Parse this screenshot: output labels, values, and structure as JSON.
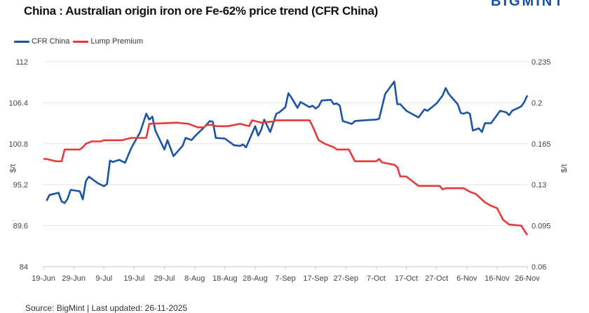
{
  "chart_data": {
    "type": "line",
    "title": "China : Australian origin iron ore Fe-62% price trend (CFR China)",
    "logo": "BIGMINT",
    "source": "Source: BigMint | Last updated: 26-11-2025",
    "y_left": {
      "label": "$/t",
      "range": [
        84,
        112
      ],
      "ticks": [
        "84",
        "89.6",
        "95.2",
        "100.8",
        "106.4",
        "112"
      ]
    },
    "y_right": {
      "label": "$/t",
      "range": [
        0.06,
        0.235
      ],
      "ticks": [
        "0.06",
        "0.095",
        "0.13",
        "0.165",
        "0.2",
        "0.235"
      ]
    },
    "x_range": [
      "2025-06-19",
      "2025-11-26"
    ],
    "x_ticks": [
      "19-Jun",
      "29-Jun",
      "9-Jul",
      "19-Jul",
      "29-Jul",
      "8-Aug",
      "18-Aug",
      "28-Aug",
      "7-Sep",
      "17-Sep",
      "27-Sep",
      "7-Oct",
      "17-Oct",
      "27-Oct",
      "6-Nov",
      "16-Nov",
      "26-Nov"
    ],
    "grid": "horizontal",
    "legend": "top-left",
    "series": [
      {
        "name": "CFR China",
        "axis": "left",
        "color": "#1a55a5",
        "points": [
          [
            "2025-06-20",
            93.0
          ],
          [
            "2025-06-21",
            93.8
          ],
          [
            "2025-06-24",
            94.1
          ],
          [
            "2025-06-25",
            92.9
          ],
          [
            "2025-06-26",
            92.7
          ],
          [
            "2025-06-27",
            93.3
          ],
          [
            "2025-06-28",
            94.5
          ],
          [
            "2025-07-01",
            94.3
          ],
          [
            "2025-07-02",
            93.2
          ],
          [
            "2025-07-03",
            95.7
          ],
          [
            "2025-07-04",
            96.3
          ],
          [
            "2025-07-07",
            95.4
          ],
          [
            "2025-07-09",
            95.0
          ],
          [
            "2025-07-10",
            95.3
          ],
          [
            "2025-07-11",
            98.5
          ],
          [
            "2025-07-12",
            98.3
          ],
          [
            "2025-07-14",
            98.6
          ],
          [
            "2025-07-16",
            98.2
          ],
          [
            "2025-07-18",
            100.2
          ],
          [
            "2025-07-21",
            102.4
          ],
          [
            "2025-07-23",
            104.9
          ],
          [
            "2025-07-24",
            104.1
          ],
          [
            "2025-07-25",
            104.5
          ],
          [
            "2025-07-26",
            102.6
          ],
          [
            "2025-07-29",
            100.0
          ],
          [
            "2025-07-30",
            101.3
          ],
          [
            "2025-08-01",
            99.1
          ],
          [
            "2025-08-04",
            100.5
          ],
          [
            "2025-08-05",
            101.6
          ],
          [
            "2025-08-07",
            101.3
          ],
          [
            "2025-08-08",
            101.8
          ],
          [
            "2025-08-11",
            103.0
          ],
          [
            "2025-08-13",
            103.9
          ],
          [
            "2025-08-14",
            103.8
          ],
          [
            "2025-08-15",
            101.6
          ],
          [
            "2025-08-18",
            101.5
          ],
          [
            "2025-08-21",
            100.6
          ],
          [
            "2025-08-23",
            100.5
          ],
          [
            "2025-08-24",
            100.7
          ],
          [
            "2025-08-25",
            100.3
          ],
          [
            "2025-08-28",
            103.2
          ],
          [
            "2025-08-29",
            101.9
          ],
          [
            "2025-08-30",
            102.7
          ],
          [
            "2025-08-31",
            104.1
          ],
          [
            "2025-09-02",
            102.4
          ],
          [
            "2025-09-04",
            104.9
          ],
          [
            "2025-09-05",
            105.1
          ],
          [
            "2025-09-07",
            105.8
          ],
          [
            "2025-09-08",
            107.7
          ],
          [
            "2025-09-09",
            107.1
          ],
          [
            "2025-09-11",
            105.7
          ],
          [
            "2025-09-12",
            106.5
          ],
          [
            "2025-09-15",
            105.8
          ],
          [
            "2025-09-16",
            106.0
          ],
          [
            "2025-09-17",
            105.6
          ],
          [
            "2025-09-18",
            105.9
          ],
          [
            "2025-09-19",
            106.7
          ],
          [
            "2025-09-22",
            106.8
          ],
          [
            "2025-09-23",
            106.2
          ],
          [
            "2025-09-24",
            106.3
          ],
          [
            "2025-09-25",
            106.0
          ],
          [
            "2025-09-26",
            103.9
          ],
          [
            "2025-09-29",
            103.5
          ],
          [
            "2025-09-30",
            103.9
          ],
          [
            "2025-10-03",
            104.0
          ],
          [
            "2025-10-07",
            104.1
          ],
          [
            "2025-10-08",
            104.2
          ],
          [
            "2025-10-10",
            107.6
          ],
          [
            "2025-10-13",
            109.3
          ],
          [
            "2025-10-14",
            106.2
          ],
          [
            "2025-10-15",
            106.2
          ],
          [
            "2025-10-17",
            105.3
          ],
          [
            "2025-10-21",
            104.4
          ],
          [
            "2025-10-23",
            105.5
          ],
          [
            "2025-10-24",
            105.3
          ],
          [
            "2025-10-27",
            106.3
          ],
          [
            "2025-10-29",
            107.4
          ],
          [
            "2025-10-30",
            108.4
          ],
          [
            "2025-10-31",
            107.6
          ],
          [
            "2025-11-03",
            106.2
          ],
          [
            "2025-11-04",
            105.0
          ],
          [
            "2025-11-05",
            104.9
          ],
          [
            "2025-11-06",
            105.1
          ],
          [
            "2025-11-07",
            104.9
          ],
          [
            "2025-11-08",
            102.6
          ],
          [
            "2025-11-10",
            102.9
          ],
          [
            "2025-11-11",
            102.4
          ],
          [
            "2025-11-12",
            103.6
          ],
          [
            "2025-11-14",
            103.6
          ],
          [
            "2025-11-17",
            105.3
          ],
          [
            "2025-11-19",
            105.1
          ],
          [
            "2025-11-20",
            104.7
          ],
          [
            "2025-11-21",
            105.3
          ],
          [
            "2025-11-24",
            105.9
          ],
          [
            "2025-11-25",
            106.5
          ],
          [
            "2025-11-26",
            107.4
          ]
        ]
      },
      {
        "name": "Lump Premium",
        "axis": "right",
        "color": "#e8393a",
        "points": [
          [
            "2025-06-19",
            0.152
          ],
          [
            "2025-06-20",
            0.152
          ],
          [
            "2025-06-23",
            0.15
          ],
          [
            "2025-06-25",
            0.15
          ],
          [
            "2025-06-26",
            0.16
          ],
          [
            "2025-07-01",
            0.16
          ],
          [
            "2025-07-02",
            0.162
          ],
          [
            "2025-07-03",
            0.165
          ],
          [
            "2025-07-05",
            0.167
          ],
          [
            "2025-07-08",
            0.167
          ],
          [
            "2025-07-09",
            0.168
          ],
          [
            "2025-07-15",
            0.168
          ],
          [
            "2025-07-18",
            0.17
          ],
          [
            "2025-07-23",
            0.17
          ],
          [
            "2025-07-24",
            0.182
          ],
          [
            "2025-08-02",
            0.183
          ],
          [
            "2025-08-06",
            0.182
          ],
          [
            "2025-08-09",
            0.179
          ],
          [
            "2025-08-11",
            0.179
          ],
          [
            "2025-08-12",
            0.181
          ],
          [
            "2025-08-14",
            0.181
          ],
          [
            "2025-08-15",
            0.18
          ],
          [
            "2025-08-19",
            0.18
          ],
          [
            "2025-08-23",
            0.182
          ],
          [
            "2025-08-26",
            0.18
          ],
          [
            "2025-08-27",
            0.185
          ],
          [
            "2025-08-30",
            0.183
          ],
          [
            "2025-09-03",
            0.184
          ],
          [
            "2025-09-04",
            0.185
          ],
          [
            "2025-09-08",
            0.185
          ],
          [
            "2025-09-15",
            0.185
          ],
          [
            "2025-09-16",
            0.18
          ],
          [
            "2025-09-17",
            0.174
          ],
          [
            "2025-09-18",
            0.168
          ],
          [
            "2025-09-20",
            0.165
          ],
          [
            "2025-09-23",
            0.162
          ],
          [
            "2025-09-24",
            0.16
          ],
          [
            "2025-09-28",
            0.16
          ],
          [
            "2025-09-29",
            0.155
          ],
          [
            "2025-09-30",
            0.15
          ],
          [
            "2025-10-07",
            0.15
          ],
          [
            "2025-10-08",
            0.152
          ],
          [
            "2025-10-09",
            0.149
          ],
          [
            "2025-10-13",
            0.147
          ],
          [
            "2025-10-14",
            0.145
          ],
          [
            "2025-10-15",
            0.137
          ],
          [
            "2025-10-17",
            0.137
          ],
          [
            "2025-10-21",
            0.129
          ],
          [
            "2025-10-28",
            0.129
          ],
          [
            "2025-10-29",
            0.126
          ],
          [
            "2025-10-30",
            0.127
          ],
          [
            "2025-11-05",
            0.127
          ],
          [
            "2025-11-07",
            0.124
          ],
          [
            "2025-11-09",
            0.122
          ],
          [
            "2025-11-12",
            0.115
          ],
          [
            "2025-11-14",
            0.112
          ],
          [
            "2025-11-16",
            0.11
          ],
          [
            "2025-11-18",
            0.1
          ],
          [
            "2025-11-20",
            0.096
          ],
          [
            "2025-11-24",
            0.095
          ],
          [
            "2025-11-25",
            0.091
          ],
          [
            "2025-11-26",
            0.087
          ]
        ]
      }
    ]
  }
}
